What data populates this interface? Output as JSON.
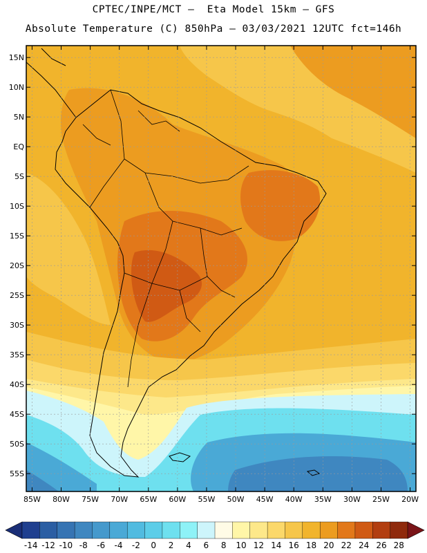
{
  "header": {
    "line1": "CPTEC/INPE/MCT –  Eta Model 15km – GFS",
    "line2": "Absolute Temperature (C) 850hPa – 03/03/2021 12UTC fct=146h"
  },
  "axes": {
    "lat_labels": [
      "15N",
      "10N",
      "5N",
      "EQ",
      "5S",
      "10S",
      "15S",
      "20S",
      "25S",
      "30S",
      "35S",
      "40S",
      "45S",
      "50S",
      "55S"
    ],
    "lat_values": [
      15,
      10,
      5,
      0,
      -5,
      -10,
      -15,
      -20,
      -25,
      -30,
      -35,
      -40,
      -45,
      -50,
      -55
    ],
    "lon_labels": [
      "85W",
      "80W",
      "75W",
      "70W",
      "65W",
      "60W",
      "55W",
      "50W",
      "45W",
      "40W",
      "35W",
      "30W",
      "25W",
      "20W"
    ],
    "lon_values": [
      -85,
      -80,
      -75,
      -70,
      -65,
      -60,
      -55,
      -50,
      -45,
      -40,
      -35,
      -30,
      -25,
      -20
    ],
    "lat_range": [
      -58,
      17
    ],
    "lon_range": [
      -86,
      -19
    ]
  },
  "colorbar": {
    "labels": [
      "-14",
      "-12",
      "-10",
      "-8",
      "-6",
      "-4",
      "-2",
      "0",
      "2",
      "4",
      "6",
      "8",
      "10",
      "12",
      "14",
      "16",
      "18",
      "20",
      "22",
      "24",
      "26",
      "28"
    ],
    "colors": [
      "#1f3f8f",
      "#2b5ea3",
      "#3674b3",
      "#3f87c0",
      "#4599cc",
      "#4aa9d6",
      "#51bbe0",
      "#5ccde8",
      "#6ee0ef",
      "#8ef2f7",
      "#cdf5fb",
      "#fffbe6",
      "#fff6a8",
      "#fde88a",
      "#fbd86a",
      "#f6c64a",
      "#f1b42c",
      "#ec9c20",
      "#e2781a",
      "#d05a14",
      "#b23e10",
      "#8f2a0c"
    ],
    "end_left": "#1a2e77",
    "end_right": "#7a1418"
  },
  "map_colors": {
    "base": "#f1b42c",
    "hot": "#ec9c20",
    "hotter": "#e2781a",
    "hottest": "#d05a14",
    "mild": "#f6c64a",
    "warm_light": "#fbd86a",
    "pale": "#fde88a",
    "cream": "#fff6a8",
    "cool": "#cdf5fb",
    "cyan": "#6ee0ef",
    "blue": "#4aa9d6",
    "deep": "#3f87c0"
  }
}
